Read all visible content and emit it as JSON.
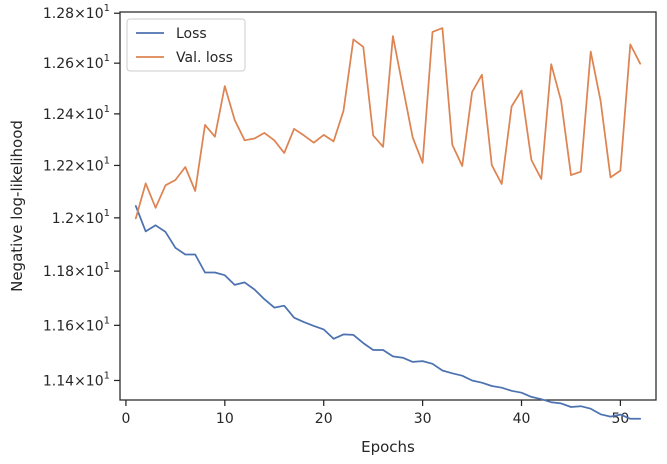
{
  "chart_data": {
    "type": "line",
    "title": "",
    "xlabel": "Epochs",
    "ylabel": "Negative log-likelihood",
    "xlim": [
      -0.6,
      53.6
    ],
    "ylim": [
      11.33,
      12.805
    ],
    "x_ticks": [
      0,
      10,
      20,
      30,
      40,
      50
    ],
    "y_ticks": [
      {
        "value": 11.4,
        "mantissa": "1.14",
        "base": "10",
        "exp": "1"
      },
      {
        "value": 11.6,
        "mantissa": "1.16",
        "base": "10",
        "exp": "1"
      },
      {
        "value": 11.8,
        "mantissa": "1.18",
        "base": "10",
        "exp": "1"
      },
      {
        "value": 12.0,
        "mantissa": "1.2",
        "base": "10",
        "exp": "1"
      },
      {
        "value": 12.2,
        "mantissa": "1.22",
        "base": "10",
        "exp": "1"
      },
      {
        "value": 12.4,
        "mantissa": "1.24",
        "base": "10",
        "exp": "1"
      },
      {
        "value": 12.6,
        "mantissa": "1.26",
        "base": "10",
        "exp": "1"
      },
      {
        "value": 12.8,
        "mantissa": "1.28",
        "base": "10",
        "exp": "1"
      }
    ],
    "x_scale": "linear",
    "y_scale": "log",
    "grid": false,
    "legend": {
      "placement": "top-left"
    },
    "x": [
      1,
      2,
      3,
      4,
      5,
      6,
      7,
      8,
      9,
      10,
      11,
      12,
      13,
      14,
      15,
      16,
      17,
      18,
      19,
      20,
      21,
      22,
      23,
      24,
      25,
      26,
      27,
      28,
      29,
      30,
      31,
      32,
      33,
      34,
      35,
      36,
      37,
      38,
      39,
      40,
      41,
      42,
      43,
      44,
      45,
      46,
      47,
      48,
      49,
      50,
      51,
      52
    ],
    "series": [
      {
        "name": "Loss",
        "color": "#4c72b0",
        "values": [
          12.045,
          11.949,
          11.972,
          11.947,
          11.887,
          11.862,
          11.862,
          11.795,
          11.795,
          11.785,
          11.749,
          11.758,
          11.732,
          11.696,
          11.665,
          11.672,
          11.628,
          11.612,
          11.598,
          11.585,
          11.551,
          11.567,
          11.565,
          11.535,
          11.51,
          11.51,
          11.487,
          11.482,
          11.467,
          11.47,
          11.46,
          11.436,
          11.426,
          11.417,
          11.4,
          11.392,
          11.38,
          11.374,
          11.363,
          11.356,
          11.341,
          11.333,
          11.322,
          11.318,
          11.305,
          11.308,
          11.299,
          11.279,
          11.271,
          11.278,
          11.263,
          11.263
        ]
      },
      {
        "name": "Val. loss",
        "color": "#dd8452",
        "values": [
          11.998,
          12.131,
          12.038,
          12.124,
          12.144,
          12.194,
          12.102,
          12.357,
          12.311,
          12.509,
          12.376,
          12.297,
          12.304,
          12.326,
          12.297,
          12.248,
          12.342,
          12.316,
          12.288,
          12.318,
          12.293,
          12.412,
          12.695,
          12.665,
          12.316,
          12.272,
          12.708,
          12.506,
          12.308,
          12.21,
          12.725,
          12.74,
          12.28,
          12.198,
          12.486,
          12.554,
          12.201,
          12.129,
          12.429,
          12.492,
          12.221,
          12.148,
          12.596,
          12.451,
          12.163,
          12.176,
          12.646,
          12.451,
          12.154,
          12.18,
          12.675,
          12.598
        ]
      }
    ]
  }
}
